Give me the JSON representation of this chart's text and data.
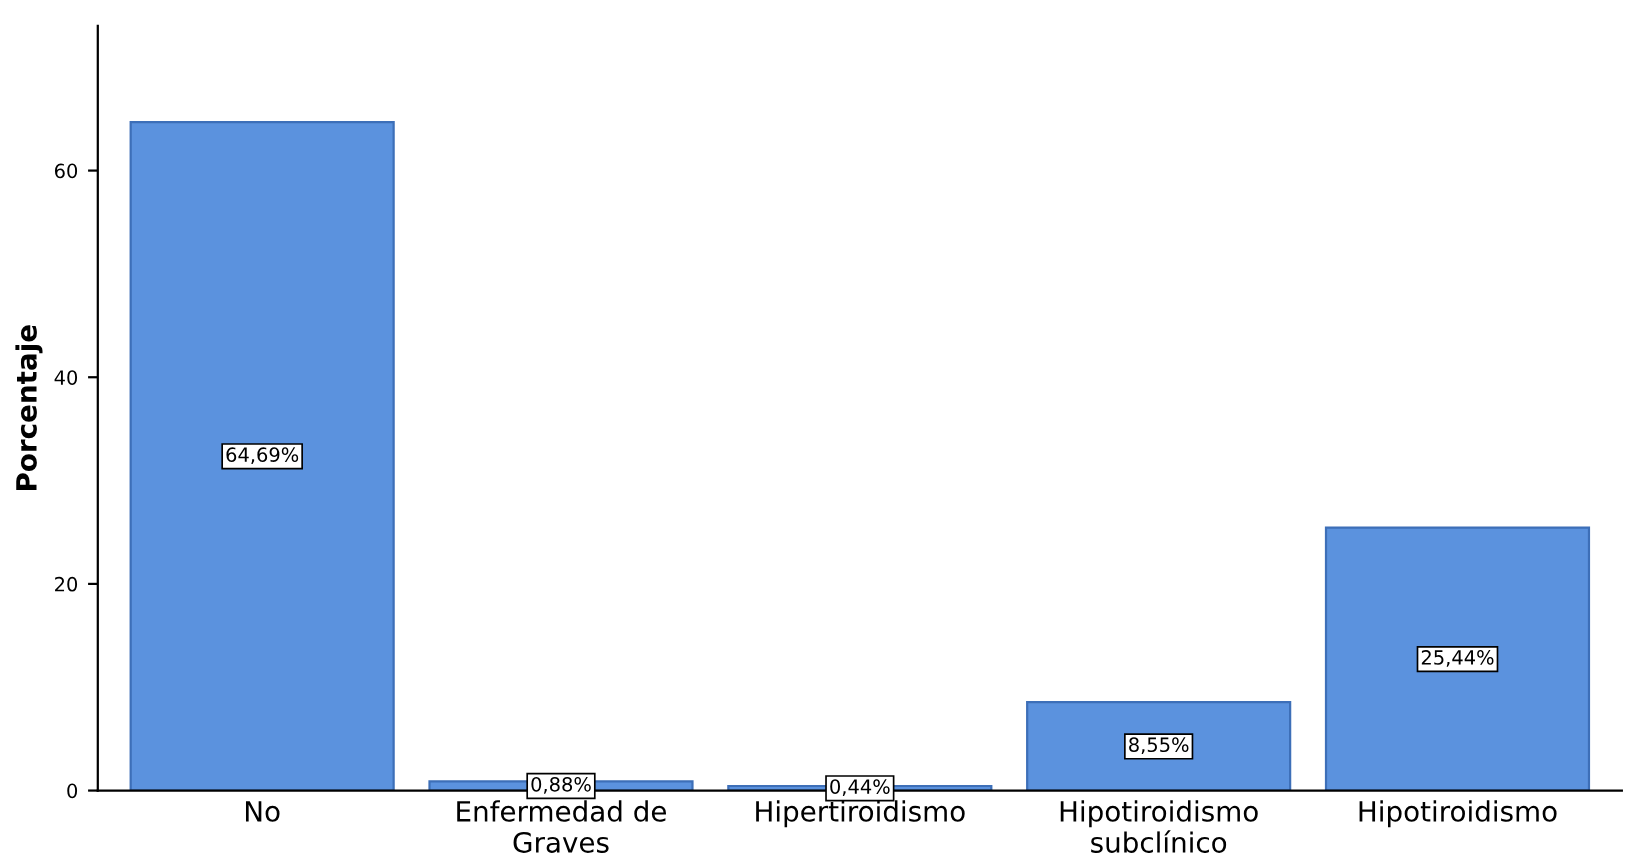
{
  "chart_data": {
    "type": "bar",
    "ylabel": "Porcentaje",
    "categories": [
      "No",
      "Enfermedad de\nGraves",
      "Hipertiroidismo",
      "Hipotiroidismo\nsubclínico",
      "Hipotiroidismo"
    ],
    "values": [
      64.69,
      0.88,
      0.44,
      8.55,
      25.44
    ],
    "value_labels": [
      "64,69%",
      "0,88%",
      "0,44%",
      "8,55%",
      "25,44%"
    ],
    "color": "#5b92de",
    "ylim": [
      0,
      74
    ],
    "yticks": [
      0,
      20,
      40,
      60
    ],
    "grid": false,
    "legend": false
  }
}
